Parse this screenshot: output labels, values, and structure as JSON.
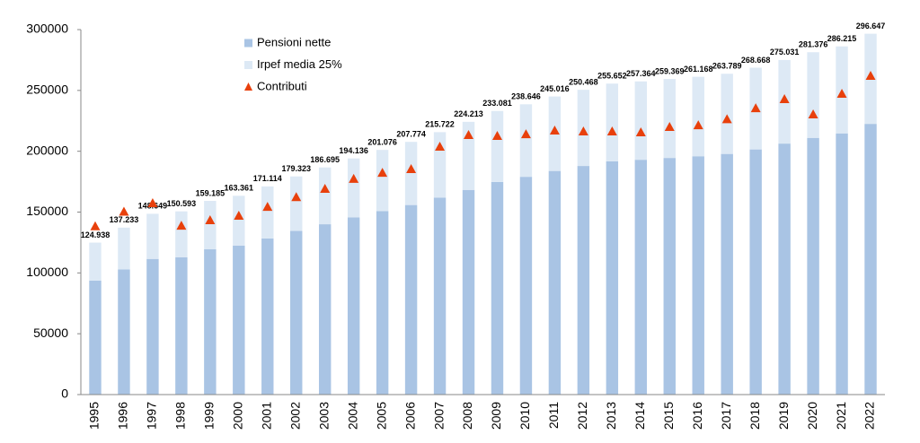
{
  "chart_data": {
    "type": "bar",
    "categories": [
      "1995",
      "1996",
      "1997",
      "1998",
      "1999",
      "2000",
      "2001",
      "2002",
      "2003",
      "2004",
      "2005",
      "2006",
      "2007",
      "2008",
      "2009",
      "2010",
      "2011",
      "2012",
      "2013",
      "2014",
      "2015",
      "2016",
      "2017",
      "2018",
      "2019",
      "2020",
      "2021",
      "2022"
    ],
    "series": [
      {
        "name": "Pensioni nette",
        "color": "#a9c4e4",
        "kind": "bar",
        "values": [
          93700,
          102900,
          111500,
          112900,
          119400,
          122500,
          128300,
          134500,
          140000,
          145600,
          150800,
          155800,
          161800,
          168200,
          174800,
          179000,
          183800,
          187900,
          191700,
          193000,
          194500,
          195900,
          197800,
          201500,
          206300,
          211000,
          214700,
          222500
        ]
      },
      {
        "name": "Irpef media 25%",
        "color": "#dde9f5",
        "kind": "bar",
        "values": [
          31200,
          34300,
          37100,
          37700,
          39800,
          40900,
          42800,
          44800,
          46700,
          48500,
          50300,
          51900,
          53900,
          56000,
          58300,
          59600,
          61200,
          62600,
          63900,
          64400,
          64900,
          65300,
          65900,
          67200,
          68700,
          70400,
          71500,
          74100
        ]
      },
      {
        "name": "Contributi",
        "color": "#e8400c",
        "kind": "marker",
        "values": [
          138000,
          150000,
          157000,
          138500,
          143000,
          146700,
          154000,
          162000,
          168800,
          177000,
          182000,
          185000,
          203400,
          213000,
          212300,
          213700,
          216700,
          216000,
          216000,
          215200,
          219700,
          221000,
          226000,
          235000,
          242500,
          230000,
          246900,
          261700
        ]
      }
    ],
    "totals": [
      124938,
      137233,
      148649,
      150593,
      159185,
      163361,
      171114,
      179323,
      186695,
      194136,
      201076,
      207774,
      215722,
      224213,
      233081,
      238646,
      245016,
      250468,
      255652,
      257364,
      259369,
      261168,
      263789,
      268668,
      275031,
      281376,
      286215,
      296647
    ],
    "total_labels": [
      "124.938",
      "137.233",
      "148.649",
      "150.593",
      "159.185",
      "163.361",
      "171.114",
      "179.323",
      "186.695",
      "194.136",
      "201.076",
      "207.774",
      "215.722",
      "224.213",
      "233.081",
      "238.646",
      "245.016",
      "250.468",
      "255.652",
      "257.364",
      "259.369",
      "261.168",
      "263.789",
      "268.668",
      "275.031",
      "281.376",
      "286.215",
      "296.647"
    ],
    "ylim": [
      0,
      300000
    ],
    "yticks": [
      0,
      50000,
      100000,
      150000,
      200000,
      250000,
      300000
    ],
    "legend": "top-left"
  }
}
